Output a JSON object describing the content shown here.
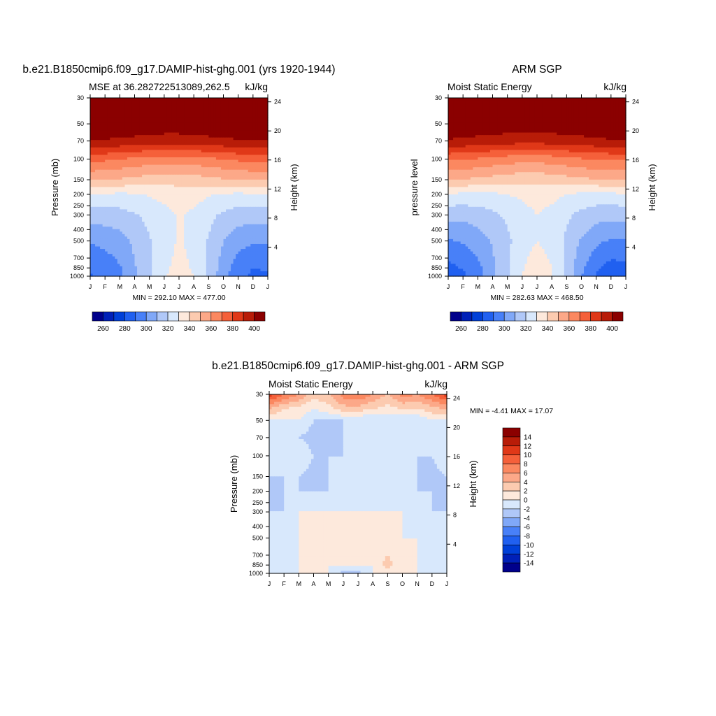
{
  "palette": {
    "mse": [
      "#00008b",
      "#0020b8",
      "#0040d8",
      "#2060f0",
      "#4880f8",
      "#80a8f8",
      "#b0c8f8",
      "#d8e8fc",
      "#fde9dc",
      "#fccbb0",
      "#fca888",
      "#fb8860",
      "#f5603a",
      "#e03818",
      "#b81c08",
      "#8b0000"
    ],
    "diff": [
      "#00008b",
      "#0020b8",
      "#0040d8",
      "#2060f0",
      "#4880f8",
      "#80a8f8",
      "#b0c8f8",
      "#d8e8fc",
      "#fde9dc",
      "#fccbb0",
      "#fca888",
      "#fb8860",
      "#f5603a",
      "#e03818",
      "#b81c08",
      "#8b0000"
    ]
  },
  "panels": [
    {
      "id": "model",
      "main_title": "b.e21.B1850cmip6.f09_g17.DAMIP-hist-ghg.001 (yrs 1920-1944)",
      "left_subtitle": "MSE at 36.282722513089,262.5",
      "right_subtitle": "kJ/kg",
      "y_label": "Pressure (mb)",
      "y2_label": "Height (km)",
      "min_max": "MIN = 292.10 MAX = 477.00"
    },
    {
      "id": "obs",
      "main_title": "ARM SGP",
      "left_subtitle": "Moist Static Energy",
      "right_subtitle": "kJ/kg",
      "y_label": "pressure level",
      "y2_label": "Height (km)",
      "min_max": "MIN = 282.63 MAX = 468.50"
    },
    {
      "id": "diff",
      "main_title": "b.e21.B1850cmip6.f09_g17.DAMIP-hist-ghg.001 - ARM SGP",
      "left_subtitle": "Moist Static Energy",
      "right_subtitle": "kJ/kg",
      "y_label": "Pressure (mb)",
      "y2_label": "Height (km)",
      "min_max": "MIN =  -4.41 MAX =  17.07"
    }
  ],
  "chart_data": [
    {
      "type": "heatmap",
      "title": "b.e21.B1850cmip6.f09_g17.DAMIP-hist-ghg.001 (yrs 1920-1944)",
      "subtitle": "MSE at 36.282722513089,262.5",
      "units": "kJ/kg",
      "xlabel": "",
      "ylabel": "Pressure (mb)",
      "y2label": "Height (km)",
      "x_ticks": [
        "J",
        "F",
        "M",
        "A",
        "M",
        "J",
        "J",
        "A",
        "S",
        "O",
        "N",
        "D",
        "J"
      ],
      "y_ticks": [
        30,
        50,
        70,
        100,
        150,
        200,
        250,
        300,
        400,
        500,
        700,
        850,
        1000
      ],
      "y2_ticks": [
        24,
        20,
        16,
        12,
        8,
        4
      ],
      "colorbar_labels": [
        260,
        280,
        300,
        320,
        340,
        360,
        380,
        400
      ],
      "min": 292.1,
      "max": 477.0,
      "levels": [
        30,
        70,
        100,
        150,
        200,
        300,
        500,
        850,
        1000
      ],
      "field": [
        [
          430,
          430,
          430,
          430,
          430,
          430,
          430,
          430,
          430,
          430,
          430,
          430,
          430
        ],
        [
          405,
          404,
          403,
          402,
          401,
          400,
          400,
          401,
          402,
          403,
          404,
          405,
          405
        ],
        [
          378,
          377,
          375,
          373,
          371,
          370,
          370,
          371,
          373,
          375,
          377,
          378,
          378
        ],
        [
          356,
          355,
          354,
          352,
          350,
          349,
          349,
          350,
          352,
          354,
          355,
          356,
          356
        ],
        [
          335,
          334,
          333,
          334,
          336,
          338,
          340,
          339,
          336,
          334,
          333,
          334,
          335
        ],
        [
          320,
          320,
          321,
          324,
          328,
          332,
          336,
          333,
          328,
          323,
          320,
          319,
          320
        ],
        [
          306,
          308,
          311,
          317,
          324,
          331,
          336,
          332,
          324,
          315,
          309,
          306,
          306
        ],
        [
          296,
          299,
          304,
          314,
          324,
          333,
          338,
          334,
          323,
          310,
          300,
          295,
          296
        ],
        [
          294,
          297,
          302,
          313,
          324,
          334,
          339,
          335,
          323,
          308,
          298,
          293,
          294
        ]
      ]
    },
    {
      "type": "heatmap",
      "title": "ARM SGP",
      "subtitle": "Moist Static Energy",
      "units": "kJ/kg",
      "xlabel": "",
      "ylabel": "pressure level",
      "y2label": "Height (km)",
      "x_ticks": [
        "J",
        "F",
        "M",
        "A",
        "M",
        "J",
        "J",
        "A",
        "S",
        "O",
        "N",
        "D",
        "J"
      ],
      "y_ticks": [
        30,
        50,
        70,
        100,
        150,
        200,
        250,
        300,
        400,
        500,
        700,
        850,
        1000
      ],
      "y2_ticks": [
        24,
        20,
        16,
        12,
        8,
        4
      ],
      "colorbar_labels": [
        260,
        280,
        300,
        320,
        340,
        360,
        380,
        400
      ],
      "min": 282.63,
      "max": 468.5,
      "levels": [
        30,
        70,
        100,
        150,
        200,
        300,
        500,
        850,
        1000
      ],
      "field": [
        [
          428,
          428,
          428,
          428,
          428,
          428,
          428,
          428,
          428,
          428,
          428,
          428,
          428
        ],
        [
          404,
          403,
          402,
          401,
          400,
          399,
          399,
          400,
          401,
          402,
          403,
          404,
          404
        ],
        [
          377,
          376,
          374,
          372,
          370,
          369,
          369,
          370,
          372,
          374,
          376,
          377,
          377
        ],
        [
          355,
          354,
          353,
          351,
          349,
          348,
          348,
          349,
          351,
          353,
          354,
          355,
          355
        ],
        [
          334,
          333,
          332,
          333,
          335,
          337,
          339,
          338,
          335,
          333,
          332,
          333,
          334
        ],
        [
          318,
          318,
          320,
          323,
          327,
          331,
          335,
          332,
          327,
          322,
          319,
          318,
          318
        ],
        [
          304,
          306,
          310,
          316,
          323,
          330,
          335,
          331,
          323,
          314,
          307,
          304,
          304
        ],
        [
          292,
          296,
          302,
          313,
          324,
          334,
          341,
          335,
          323,
          307,
          297,
          291,
          292
        ],
        [
          289,
          293,
          300,
          312,
          324,
          335,
          342,
          336,
          323,
          305,
          294,
          288,
          289
        ]
      ]
    },
    {
      "type": "heatmap",
      "title": "b.e21.B1850cmip6.f09_g17.DAMIP-hist-ghg.001 - ARM SGP",
      "subtitle": "Moist Static Energy",
      "units": "kJ/kg",
      "xlabel": "",
      "ylabel": "Pressure (mb)",
      "y2label": "Height (km)",
      "x_ticks": [
        "J",
        "F",
        "M",
        "A",
        "M",
        "J",
        "J",
        "A",
        "S",
        "O",
        "N",
        "D",
        "J"
      ],
      "y_ticks": [
        30,
        50,
        70,
        100,
        150,
        200,
        250,
        300,
        400,
        500,
        700,
        850,
        1000
      ],
      "y2_ticks": [
        24,
        20,
        16,
        12,
        8,
        4
      ],
      "colorbar_labels": [
        14,
        12,
        10,
        8,
        6,
        4,
        2,
        0,
        -2,
        -4,
        -6,
        -8,
        -10,
        -12,
        -14
      ],
      "min": -4.41,
      "max": 17.07,
      "levels": [
        30,
        40,
        50,
        70,
        100,
        150,
        200,
        300,
        500,
        700,
        850,
        1000
      ],
      "field": [
        [
          12,
          9,
          7,
          4,
          5,
          8,
          9,
          7,
          5,
          8,
          7,
          9,
          12
        ],
        [
          5,
          3,
          2,
          1,
          2,
          4,
          4,
          3,
          2,
          3,
          3,
          4,
          5
        ],
        [
          1,
          1,
          1,
          -1,
          -1,
          -1,
          -1,
          -1,
          -1,
          -1,
          -1,
          1,
          1
        ],
        [
          -1,
          -1,
          -1,
          -2,
          -3,
          -1,
          -1,
          -1,
          -1,
          -1,
          -1,
          -1,
          -1
        ],
        [
          1,
          1,
          1,
          -1,
          -1,
          -1,
          1,
          1,
          -1,
          -1,
          -1,
          -1,
          1
        ],
        [
          -1,
          -1,
          -1,
          -2,
          -1,
          -1,
          -1,
          -1,
          -1,
          -1,
          -1,
          -2,
          -1
        ],
        [
          -2,
          -1,
          -1,
          -1,
          -1,
          -1,
          -1,
          -1,
          -1,
          -1,
          -1,
          -1,
          -2
        ],
        [
          -1,
          -1,
          1,
          1,
          1,
          1,
          1,
          1,
          1,
          1,
          -1,
          -1,
          -1
        ],
        [
          -1,
          -1,
          1,
          1,
          1,
          1,
          1,
          1,
          2,
          1,
          1,
          -1,
          -1
        ],
        [
          -1,
          -1,
          1,
          1,
          1,
          1,
          1,
          1,
          3,
          1,
          1,
          -1,
          -1
        ],
        [
          -1,
          -1,
          1,
          1,
          1,
          1,
          1,
          1,
          4,
          1,
          1,
          -1,
          -1
        ],
        [
          1,
          -1,
          1,
          1,
          1,
          -2,
          -2,
          1,
          1,
          1,
          1,
          1,
          1
        ]
      ]
    }
  ]
}
